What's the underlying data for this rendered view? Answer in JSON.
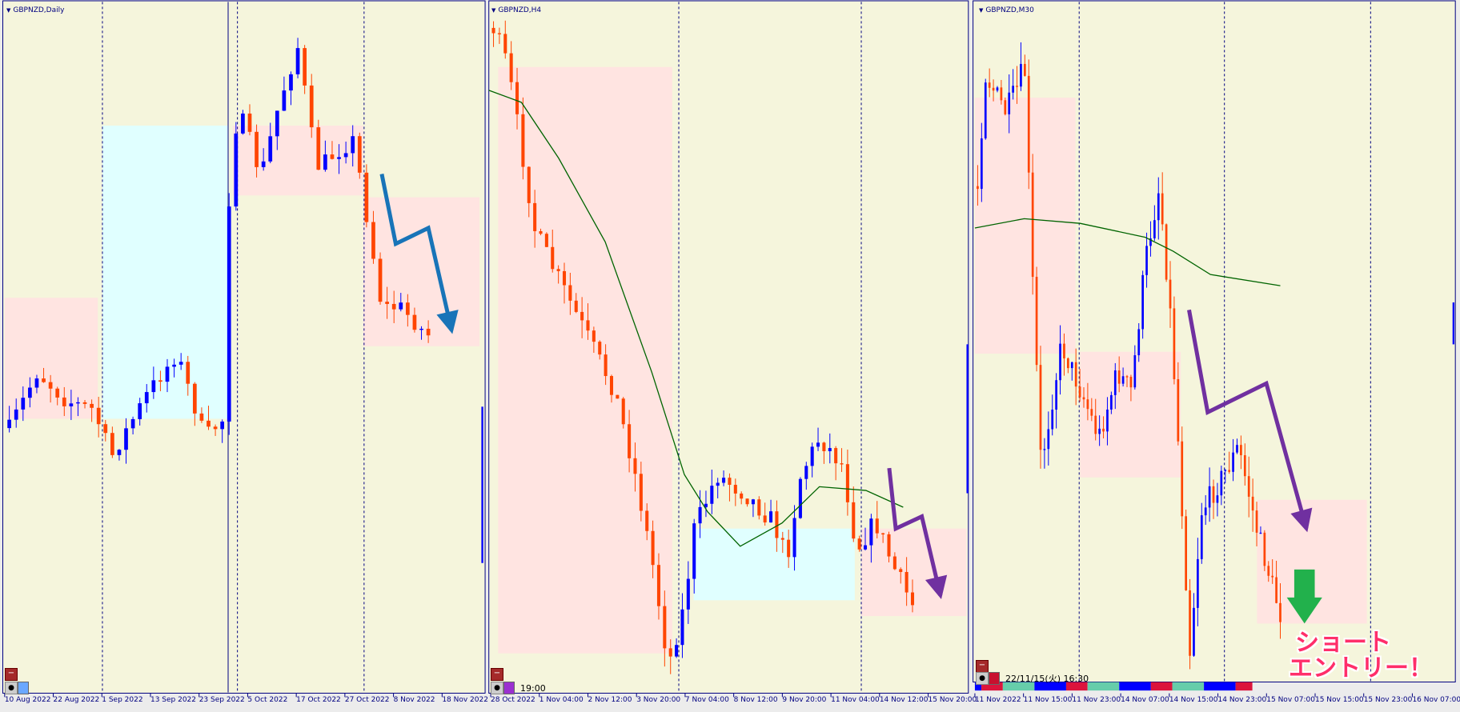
{
  "colors": {
    "background": "#f5f5dc",
    "bull": "#0000ff",
    "bear": "#ff4500",
    "zone_pink": "#ffe4e1",
    "zone_cyan": "#e0ffff",
    "ma": "#006400",
    "arrow_blue": "#1874b8",
    "arrow_purple": "#7030a0",
    "arrow_green": "#22b14c",
    "entry_text": "#ff2e6a"
  },
  "panels": [
    {
      "title": "GBPNZD,Daily",
      "time_labels": [
        "10 Aug 2022",
        "22 Aug 2022",
        "1 Sep 2022",
        "13 Sep 2022",
        "23 Sep 2022",
        "5 Oct 2022",
        "17 Oct 2022",
        "27 Oct 2022",
        "8 Nov 2022",
        "18 Nov 2022"
      ]
    },
    {
      "title": "GBPNZD,H4",
      "timer": "19:00",
      "time_labels": [
        "28 Oct 2022",
        "1 Nov 04:00",
        "2 Nov 12:00",
        "3 Nov 20:00",
        "7 Nov 04:00",
        "8 Nov 12:00",
        "9 Nov 20:00",
        "11 Nov 04:00",
        "14 Nov 12:00",
        "15 Nov 20:00"
      ]
    },
    {
      "title": "GBPNZD,M30",
      "timer": "22/11/15(火) 16:30",
      "time_labels": [
        "11 Nov 2022",
        "11 Nov 15:00",
        "11 Nov 23:00",
        "14 Nov 07:00",
        "14 Nov 15:00",
        "14 Nov 23:00",
        "15 Nov 07:00",
        "15 Nov 15:00",
        "15 Nov 23:00",
        "16 Nov 07:00"
      ]
    }
  ],
  "annotation": {
    "line1": "ショート",
    "line2": "エントリー！"
  },
  "icons": {
    "collapse": "minus-icon",
    "bomb": "bomb-icon",
    "arrow_down": "arrow-down-icon"
  }
}
